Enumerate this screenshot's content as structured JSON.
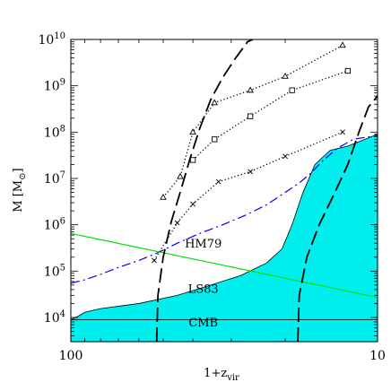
{
  "chart_data": {
    "type": "line",
    "x_scale": "log",
    "y_scale": "log",
    "x_reversed": true,
    "xlim": [
      100,
      10
    ],
    "ylim": [
      3000,
      10000000000
    ],
    "xlabel_main": "1+z",
    "xlabel_sub": "vir",
    "ylabel_main": "M",
    "ylabel_unit": "M",
    "ylabel_unit_sub": "⊙",
    "x_ticks": [
      {
        "value": 100,
        "label": "100"
      },
      {
        "value": 10,
        "label": "10"
      }
    ],
    "y_ticks": [
      {
        "value": 10000,
        "base": "10",
        "exp": "4"
      },
      {
        "value": 100000,
        "base": "10",
        "exp": "5"
      },
      {
        "value": 1000000,
        "base": "10",
        "exp": "6"
      },
      {
        "value": 10000000,
        "base": "10",
        "exp": "7"
      },
      {
        "value": 100000000,
        "base": "10",
        "exp": "8"
      },
      {
        "value": 1000000000,
        "base": "10",
        "exp": "9"
      },
      {
        "value": 10000000000,
        "base": "10",
        "exp": "10"
      }
    ],
    "regions": [
      {
        "label": "CMB",
        "color": "#ff00ff",
        "label_at": [
          37,
          7500
        ],
        "points": [
          [
            100,
            9000
          ],
          [
            10,
            9000
          ]
        ]
      },
      {
        "label": "LS83",
        "color": "#00eeee",
        "label_at": [
          37,
          40000
        ],
        "points": [
          [
            100,
            9000
          ],
          [
            95,
            10500
          ],
          [
            90,
            13000
          ],
          [
            80,
            15500
          ],
          [
            60,
            20000
          ],
          [
            45,
            30000
          ],
          [
            35,
            50000
          ],
          [
            28,
            80000
          ],
          [
            23,
            150000
          ],
          [
            20.5,
            300000
          ],
          [
            19,
            1000000
          ],
          [
            17.5,
            5000000
          ],
          [
            16,
            20000000
          ],
          [
            14.3,
            40000000
          ],
          [
            12.5,
            50000000
          ],
          [
            10,
            90000000
          ]
        ]
      }
    ],
    "series": [
      {
        "label": "HM79",
        "style": "dashdot",
        "color": "#0000ff",
        "label_at": [
          37,
          380000
        ],
        "points": [
          [
            100,
            55000
          ],
          [
            90,
            65000
          ],
          [
            80,
            85000
          ],
          [
            70,
            120000
          ],
          [
            60,
            170000
          ],
          [
            52,
            250000
          ],
          [
            45,
            400000
          ],
          [
            38,
            650000
          ],
          [
            32,
            1000000
          ],
          [
            27,
            1600000
          ],
          [
            23,
            2700000
          ],
          [
            20,
            5000000
          ],
          [
            18,
            8000000
          ],
          [
            16.5,
            13000000
          ],
          [
            15,
            25000000
          ],
          [
            13.5,
            45000000
          ],
          [
            12,
            70000000
          ],
          [
            10,
            85000000
          ]
        ]
      },
      {
        "style": "solid",
        "color": "#00dd00",
        "points": [
          [
            100,
            650000
          ],
          [
            10,
            27000
          ]
        ]
      },
      {
        "style": "dashed",
        "color": "#000000",
        "points": [
          [
            52.5,
            3000
          ],
          [
            52,
            30000
          ],
          [
            50,
            200000
          ],
          [
            47,
            1200000
          ],
          [
            44,
            5000000
          ],
          [
            41,
            25000000
          ],
          [
            38,
            120000000
          ],
          [
            35,
            500000000
          ],
          [
            32,
            1500000000
          ],
          [
            29,
            4000000000
          ],
          [
            26.5,
            9000000000
          ],
          [
            25.5,
            10000000000
          ]
        ]
      },
      {
        "style": "dashed",
        "color": "#000000",
        "points": [
          [
            18.2,
            3000
          ],
          [
            18,
            30000
          ],
          [
            17,
            200000
          ],
          [
            15.5,
            1000000
          ],
          [
            14,
            4000000
          ],
          [
            12.5,
            20000000
          ],
          [
            11.5,
            100000000
          ],
          [
            10.7,
            350000000
          ],
          [
            10,
            600000000
          ]
        ]
      },
      {
        "style": "dotted",
        "color": "#000000",
        "marker": "triangle",
        "points": [
          [
            50,
            3900000
          ],
          [
            44,
            11000000
          ],
          [
            40,
            100000000
          ],
          [
            34,
            430000000
          ],
          [
            26,
            800000000
          ],
          [
            20,
            1600000000
          ],
          [
            13,
            7500000000
          ]
        ]
      },
      {
        "style": "dotted",
        "color": "#000000",
        "marker": "square",
        "points": [
          [
            40,
            25000000
          ],
          [
            34,
            70000000
          ],
          [
            26,
            220000000
          ],
          [
            19,
            800000000
          ],
          [
            12.5,
            2100000000
          ]
        ]
      },
      {
        "style": "dotted",
        "color": "#000000",
        "marker": "cross",
        "points": [
          [
            53.5,
            170000
          ],
          [
            45,
            1100000
          ],
          [
            40,
            2800000
          ],
          [
            33,
            8500000
          ],
          [
            26,
            14000000
          ],
          [
            20,
            30000000
          ],
          [
            13,
            100000000
          ]
        ]
      }
    ]
  }
}
